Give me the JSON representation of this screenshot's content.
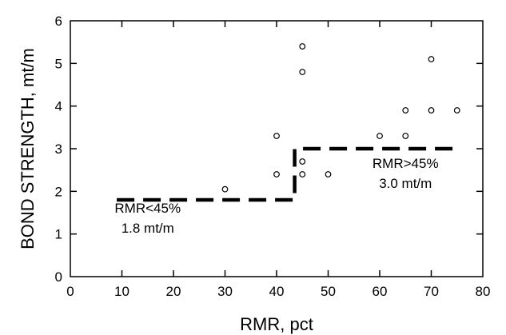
{
  "chart_data": {
    "type": "scatter",
    "xlabel": "RMR, pct",
    "ylabel": "BOND STRENGTH, mt/m",
    "xlim": [
      0,
      80
    ],
    "ylim": [
      0,
      6
    ],
    "x_ticks": [
      "0",
      "10",
      "20",
      "30",
      "40",
      "50",
      "60",
      "70",
      "80"
    ],
    "y_ticks": [
      "0",
      "1",
      "2",
      "3",
      "4",
      "5",
      "6"
    ],
    "grid": false,
    "series": [
      {
        "marker": "open-circle",
        "points": [
          {
            "x": 30,
            "y": 2.05
          },
          {
            "x": 40,
            "y": 3.3
          },
          {
            "x": 40,
            "y": 2.4
          },
          {
            "x": 45,
            "y": 5.4
          },
          {
            "x": 45,
            "y": 4.8
          },
          {
            "x": 45,
            "y": 2.7
          },
          {
            "x": 45,
            "y": 2.4
          },
          {
            "x": 50,
            "y": 2.4
          },
          {
            "x": 60,
            "y": 3.3
          },
          {
            "x": 65,
            "y": 3.9
          },
          {
            "x": 65,
            "y": 3.3
          },
          {
            "x": 70,
            "y": 5.1
          },
          {
            "x": 70,
            "y": 3.9
          },
          {
            "x": 75,
            "y": 3.9
          }
        ]
      }
    ],
    "step_line": {
      "style": "dashed",
      "points": [
        [
          9,
          1.8
        ],
        [
          43.5,
          1.8
        ],
        [
          43.5,
          3.0
        ],
        [
          75.5,
          3.0
        ]
      ]
    },
    "annotations": [
      {
        "lines": [
          "RMR<45%",
          "1.8 mt/m"
        ],
        "x": 15,
        "y": 1.5
      },
      {
        "lines": [
          "RMR>45%",
          "3.0 mt/m"
        ],
        "x": 65,
        "y": 2.55
      }
    ]
  }
}
